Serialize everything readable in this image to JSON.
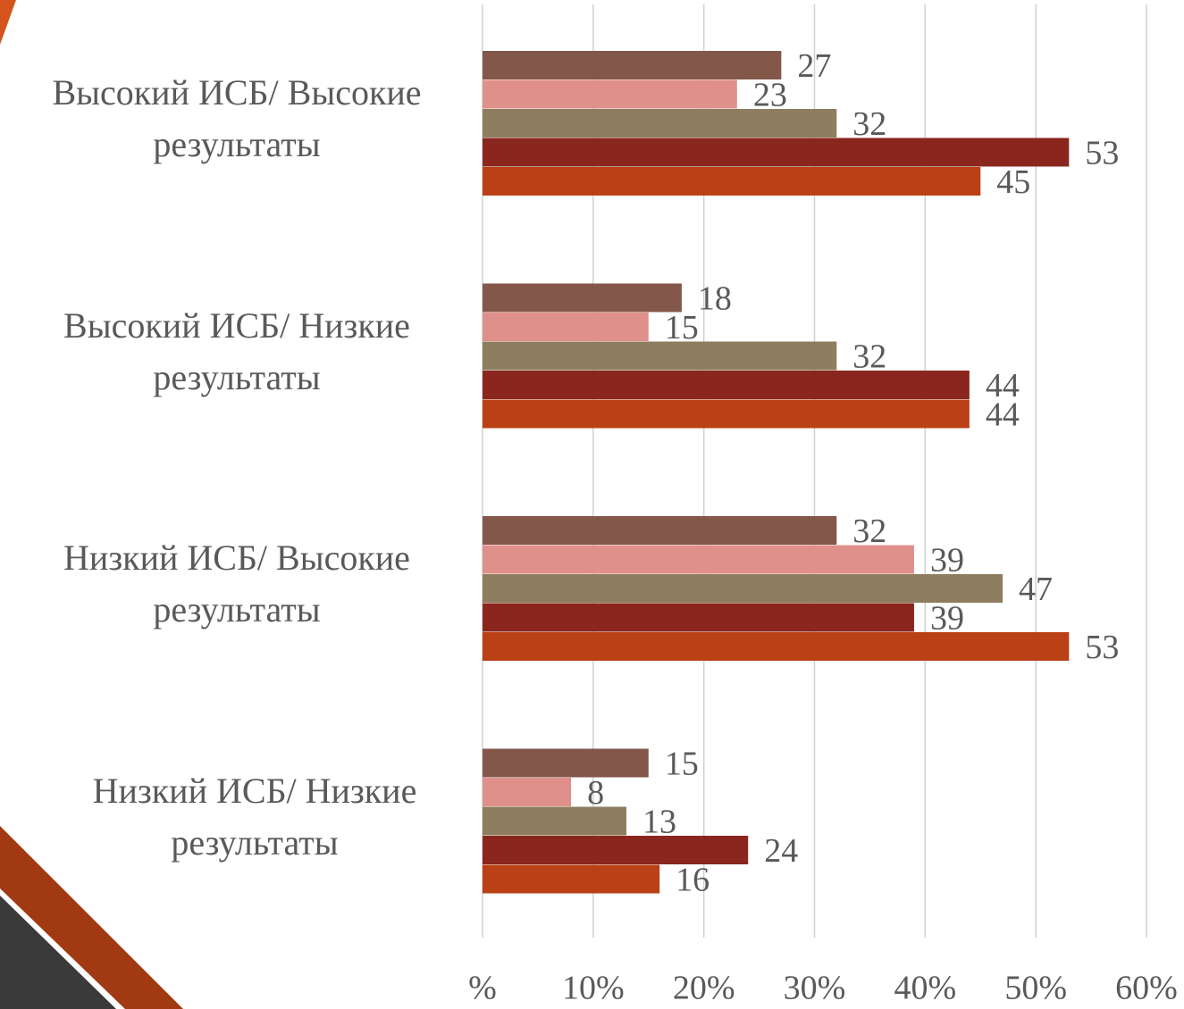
{
  "chart_data": {
    "type": "hbar",
    "categories": [
      "Высокий ИСБ/ Высокие результаты",
      "Высокий ИСБ/ Низкие результаты",
      "Низкий ИСБ/ Высокие результаты",
      "Низкий ИСБ/ Низкие результаты"
    ],
    "series": [
      {
        "color": "#83574a",
        "values": [
          27,
          18,
          32,
          15
        ]
      },
      {
        "color": "#e0908a",
        "values": [
          23,
          15,
          39,
          8
        ]
      },
      {
        "color": "#8e7d5e",
        "values": [
          32,
          32,
          47,
          13
        ]
      },
      {
        "color": "#8a261d",
        "values": [
          53,
          44,
          39,
          24
        ]
      },
      {
        "color": "#ba4015",
        "values": [
          45,
          44,
          53,
          16
        ]
      }
    ],
    "xlim": [
      0,
      60
    ],
    "xticks": [
      {
        "value": 0,
        "label": "%"
      },
      {
        "value": 10,
        "label": "10%"
      },
      {
        "value": 20,
        "label": "20%"
      },
      {
        "value": 30,
        "label": "30%"
      },
      {
        "value": 40,
        "label": "40%"
      },
      {
        "value": 50,
        "label": "50%"
      },
      {
        "value": 60,
        "label": "60%"
      }
    ],
    "grid": true
  }
}
